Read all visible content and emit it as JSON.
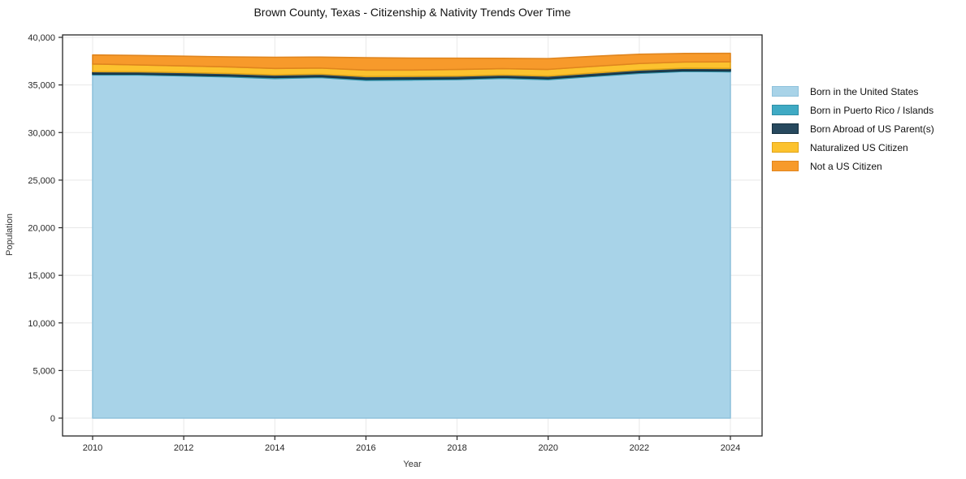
{
  "chart_data": {
    "type": "area",
    "stacked": true,
    "title": "Brown County, Texas - Citizenship & Nativity Trends Over Time",
    "xlabel": "Year",
    "ylabel": "Population",
    "x": [
      2010,
      2011,
      2012,
      2013,
      2014,
      2015,
      2016,
      2017,
      2018,
      2019,
      2020,
      2021,
      2022,
      2023,
      2024
    ],
    "series": [
      {
        "name": "Born in the United States",
        "fill": "#a8d3e8",
        "edge": "#8fc2dc",
        "values": [
          36050,
          36050,
          35950,
          35850,
          35680,
          35780,
          35480,
          35520,
          35570,
          35700,
          35560,
          35900,
          36220,
          36420,
          36380
        ]
      },
      {
        "name": "Born in Puerto Rico / Islands",
        "fill": "#3faac4",
        "edge": "#2f8fa6",
        "values": [
          100,
          90,
          100,
          100,
          110,
          100,
          120,
          110,
          100,
          100,
          110,
          100,
          100,
          90,
          100
        ]
      },
      {
        "name": "Born Abroad of US Parent(s)",
        "fill": "#27495e",
        "edge": "#16303f",
        "values": [
          250,
          240,
          250,
          250,
          260,
          250,
          280,
          270,
          260,
          250,
          260,
          250,
          250,
          240,
          250
        ]
      },
      {
        "name": "Naturalized US Citizen",
        "fill": "#fcc22e",
        "edge": "#e2a51a",
        "values": [
          800,
          720,
          700,
          690,
          680,
          640,
          680,
          660,
          700,
          660,
          700,
          700,
          680,
          660,
          700
        ]
      },
      {
        "name": "Not a US Citizen",
        "fill": "#f79a2b",
        "edge": "#e0851e",
        "values": [
          950,
          1000,
          1020,
          1060,
          1180,
          1160,
          1300,
          1260,
          1180,
          1090,
          1140,
          1060,
          980,
          900,
          890
        ]
      }
    ],
    "xticks": [
      2010,
      2012,
      2014,
      2016,
      2018,
      2020,
      2022,
      2024
    ],
    "yticks": [
      0,
      5000,
      10000,
      15000,
      20000,
      25000,
      30000,
      35000,
      40000
    ],
    "xlim": [
      2010,
      2024
    ],
    "ylim": [
      0,
      40000
    ],
    "grid": true,
    "grid_color": "#e8e8e8",
    "frame_color": "#262626",
    "tick_label_color": "#262626",
    "legend_position": "right"
  }
}
